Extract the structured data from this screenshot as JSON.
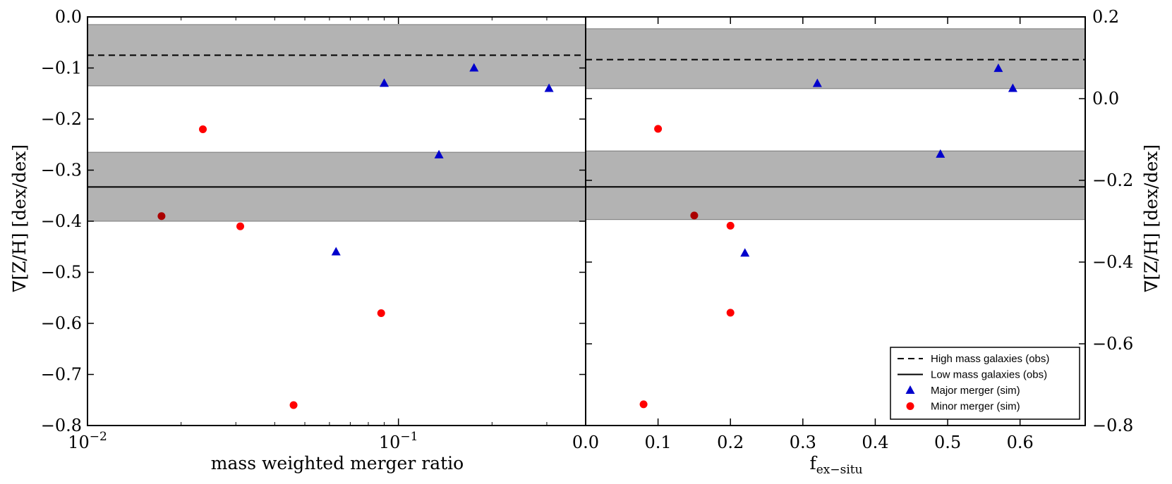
{
  "chart_data": [
    {
      "type": "scatter",
      "panel": "left",
      "xscale": "log",
      "xlim": [
        0.01,
        0.4
      ],
      "ylim": [
        -0.8,
        0.0
      ],
      "xlabel": "mass weighted merger ratio",
      "ylabel": "∇[Z/H] [dex/dex]",
      "xtick_labels": {
        "major_base": "10",
        "major_exponents": [
          "−2",
          "−1"
        ]
      },
      "ytick_labels": [
        "0.0",
        "−0.1",
        "−0.2",
        "−0.3",
        "−0.4",
        "−0.5",
        "−0.6",
        "−0.7",
        "−0.8"
      ],
      "y_ticks": [
        0.0,
        -0.1,
        -0.2,
        -0.3,
        -0.4,
        -0.5,
        -0.6,
        -0.7,
        -0.8
      ],
      "bands": [
        {
          "name": "High mass galaxies (obs)",
          "y": -0.075,
          "y_low": -0.135,
          "y_high": -0.015,
          "linestyle": "dashed"
        },
        {
          "name": "Low mass galaxies (obs)",
          "y": -0.333,
          "y_low": -0.4,
          "y_high": -0.265,
          "linestyle": "solid"
        }
      ],
      "series": [
        {
          "name": "Major merger (sim)",
          "marker": "triangle",
          "color": "#0000cc",
          "points": [
            [
              0.09,
              -0.13
            ],
            [
              0.175,
              -0.1
            ],
            [
              0.305,
              -0.14
            ],
            [
              0.135,
              -0.27
            ],
            [
              0.063,
              -0.46
            ]
          ]
        },
        {
          "name": "Minor merger (sim)",
          "marker": "circle",
          "color": "#ff0000",
          "points": [
            [
              0.0235,
              -0.22
            ],
            [
              0.031,
              -0.41
            ],
            [
              0.088,
              -0.58
            ],
            [
              0.046,
              -0.76
            ]
          ]
        },
        {
          "name": "",
          "marker": "circle",
          "color": "#aa0000",
          "points": [
            [
              0.0173,
              -0.39
            ]
          ]
        }
      ]
    },
    {
      "type": "scatter",
      "panel": "right",
      "xlim": [
        0.0,
        0.69
      ],
      "ylim": [
        -0.8,
        0.2
      ],
      "xlabel": "f_ex−situ",
      "xlabel_main": "f",
      "xlabel_sub": "ex−situ",
      "ylabel": "∇[Z/H] [dex/dex]",
      "x_ticks": [
        0.0,
        0.1,
        0.2,
        0.3,
        0.4,
        0.5,
        0.6
      ],
      "xtick_labels": [
        "0.0",
        "0.1",
        "0.2",
        "0.3",
        "0.4",
        "0.5",
        "0.6"
      ],
      "y_ticks": [
        0.2,
        0.0,
        -0.2,
        -0.4,
        -0.6,
        -0.8
      ],
      "ytick_labels": [
        "0.2",
        "0.0",
        "−0.2",
        "−0.4",
        "−0.6",
        "−0.8"
      ],
      "bands": [
        {
          "name": "High mass galaxies (obs)",
          "y": 0.0955,
          "y_low": 0.0245,
          "y_high": 0.171,
          "linestyle": "dashed"
        },
        {
          "name": "Low mass galaxies (obs)",
          "y": -0.216,
          "y_low": -0.296,
          "y_high": -0.128,
          "linestyle": "solid"
        }
      ],
      "series": [
        {
          "name": "Major merger (sim)",
          "marker": "triangle",
          "color": "#0000cc",
          "points": [
            [
              0.32,
              0.037
            ],
            [
              0.57,
              0.074
            ],
            [
              0.59,
              0.025
            ],
            [
              0.49,
              -0.136
            ],
            [
              0.22,
              -0.378
            ]
          ]
        },
        {
          "name": "Minor merger (sim)",
          "marker": "circle",
          "color": "#ff0000",
          "points": [
            [
              0.1,
              -0.074
            ],
            [
              0.2,
              -0.311
            ],
            [
              0.2,
              -0.524
            ],
            [
              0.08,
              -0.748
            ]
          ]
        },
        {
          "name": "",
          "marker": "circle",
          "color": "#aa0000",
          "points": [
            [
              0.15,
              -0.286
            ]
          ]
        }
      ]
    }
  ],
  "legend": {
    "placement": "lower-right",
    "entries": [
      {
        "label": "High mass galaxies (obs)",
        "marker": "dashed-line"
      },
      {
        "label": "Low mass galaxies (obs)",
        "marker": "solid-line"
      },
      {
        "label": "Major merger (sim)",
        "marker": "triangle",
        "color": "#0000cc"
      },
      {
        "label": "Minor merger (sim)",
        "marker": "circle",
        "color": "#ff0000"
      }
    ]
  },
  "colors": {
    "band": "#b3b3b3",
    "axis": "#000000"
  }
}
